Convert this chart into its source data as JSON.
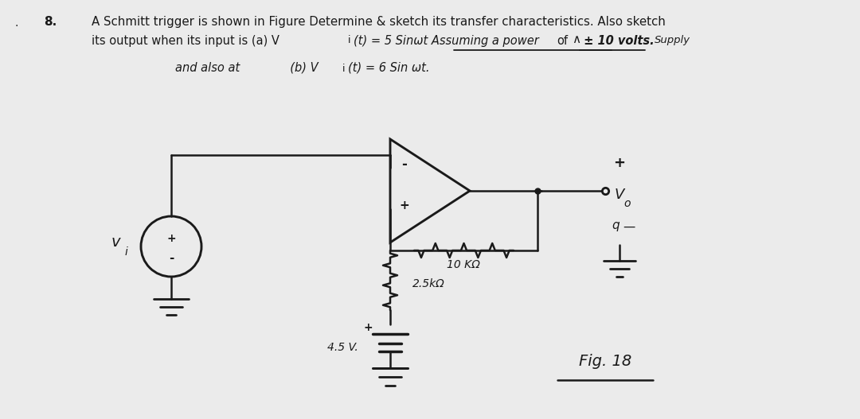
{
  "bg_color": "#ebebeb",
  "text_color": "#111111",
  "line_color": "#1a1a1a",
  "figsize": [
    10.8,
    5.27
  ],
  "dpi": 100,
  "bullet": ".",
  "num": "8.",
  "line1": "A Schmitt trigger is shown in Figure Determine & sketch its transfer characteristics. Also sketch",
  "line2a": "its output when its input is (a) V",
  "line2b": "(t) = 5 Sin",
  "line2c": "t Assuming a power",
  "line2d": "of",
  "line2e": "± 10 volts.",
  "line2f": "Supply",
  "underline1_text": "transfer characteristics",
  "underline2_text": "± 10 volts",
  "line3": "and also at   (b) V",
  "line3b": "(t) = 6 Sin",
  "line3c": "t.",
  "label_vi": "v",
  "label_vi_sub": "i",
  "label_2p5k": "2.5k",
  "label_2p5k_omega": "Ω",
  "label_45v": "4.5 V.",
  "label_10k": "10 K",
  "label_10k_omega": "Ω",
  "label_plus": "+",
  "label_minus": "-",
  "label_Vo_plus": "+",
  "label_Vo": "V",
  "label_Vo_sub": "o",
  "label_q": "q",
  "label_fig": "Fig. 18"
}
